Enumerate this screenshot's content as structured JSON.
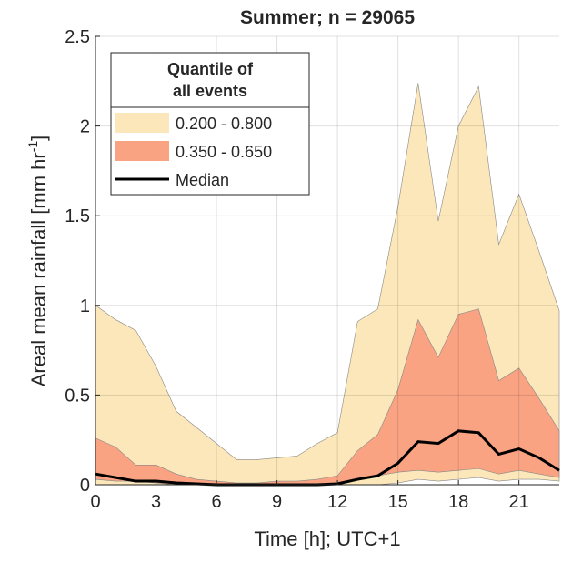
{
  "chart_data": {
    "type": "area_band",
    "title": "Summer; n = 29065",
    "xlabel": "Time [h]; UTC+1",
    "ylabel": [
      "Areal mean rainfall [mm hr",
      "-1",
      "]"
    ],
    "x": [
      0,
      1,
      2,
      3,
      4,
      5,
      6,
      7,
      8,
      9,
      10,
      11,
      12,
      13,
      14,
      15,
      16,
      17,
      18,
      19,
      20,
      21,
      22,
      23
    ],
    "xlim": [
      0,
      23
    ],
    "xticks": [
      0,
      3,
      6,
      9,
      12,
      15,
      18,
      21
    ],
    "ylim": [
      0,
      2.5
    ],
    "yticks": [
      0,
      0.5,
      1,
      {
        "value": 1.5,
        "label": "1.5"
      },
      2,
      {
        "value": 2.5,
        "label": "2.5"
      }
    ],
    "grid": true,
    "legend_title": [
      "Quantile of",
      "all events"
    ],
    "bands": [
      {
        "name": "0.200 - 0.800",
        "color": "#fbe7b9",
        "lower": [
          0,
          0,
          0,
          0,
          0,
          0,
          0,
          0,
          0,
          0,
          0,
          0,
          0,
          0,
          0,
          0.01,
          0.03,
          0.02,
          0.03,
          0.04,
          0.02,
          0.03,
          0.03,
          0.02
        ],
        "upper": [
          1.0,
          0.92,
          0.86,
          0.66,
          0.41,
          0.32,
          0.23,
          0.14,
          0.14,
          0.15,
          0.16,
          0.23,
          0.29,
          0.91,
          0.98,
          1.55,
          2.24,
          1.47,
          2.0,
          2.22,
          1.34,
          1.62,
          1.3,
          0.97
        ]
      },
      {
        "name": "0.350 - 0.650",
        "color": "#f9a383",
        "lower": [
          0.03,
          0.02,
          0.02,
          0.01,
          0,
          0,
          0,
          0,
          0,
          0,
          0,
          0,
          0.01,
          0.03,
          0.05,
          0.07,
          0.08,
          0.07,
          0.08,
          0.09,
          0.06,
          0.08,
          0.06,
          0.04
        ],
        "upper": [
          0.26,
          0.21,
          0.11,
          0.11,
          0.06,
          0.03,
          0.02,
          0.01,
          0.01,
          0.02,
          0.02,
          0.03,
          0.05,
          0.19,
          0.28,
          0.53,
          0.92,
          0.71,
          0.95,
          0.98,
          0.58,
          0.65,
          0.48,
          0.3
        ]
      }
    ],
    "series": [
      {
        "name": "Median",
        "color": "#000000",
        "values": [
          0.06,
          0.04,
          0.02,
          0.02,
          0.01,
          0.005,
          0,
          0,
          0,
          0,
          0,
          0,
          0.005,
          0.03,
          0.05,
          0.12,
          0.24,
          0.23,
          0.3,
          0.29,
          0.17,
          0.2,
          0.15,
          0.08
        ]
      }
    ]
  }
}
